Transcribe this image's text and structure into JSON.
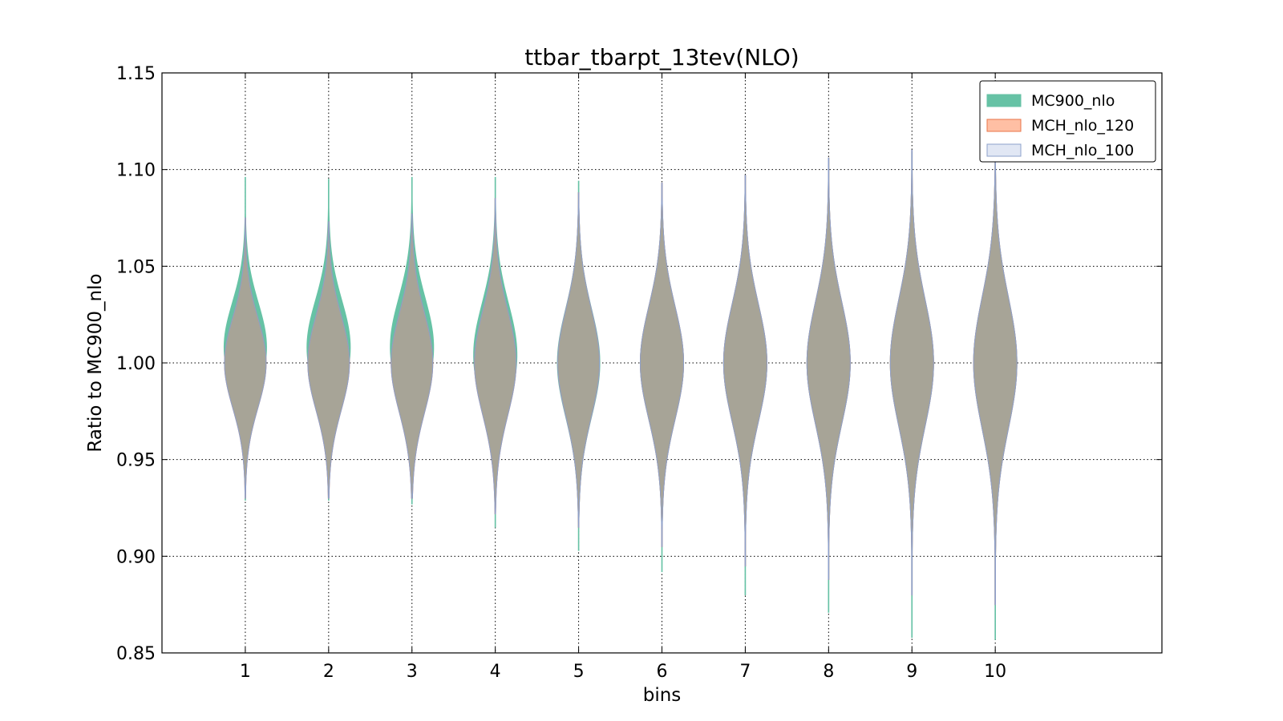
{
  "chart_data": {
    "type": "violin",
    "title": "ttbar_tbarpt_13tev(NLO)",
    "xlabel": "bins",
    "ylabel": "Ratio to MC900_nlo",
    "xlim": [
      0,
      12
    ],
    "ylim": [
      0.85,
      1.15
    ],
    "x_ticks": [
      "1",
      "2",
      "3",
      "4",
      "5",
      "6",
      "7",
      "8",
      "9",
      "10"
    ],
    "y_ticks": [
      "0.85",
      "0.90",
      "0.95",
      "1.00",
      "1.05",
      "1.10",
      "1.15"
    ],
    "grid": true,
    "legend_position": "top-right",
    "series": [
      {
        "name": "MC900_nlo",
        "color": "#66c2a5",
        "edge": "#66c2a5",
        "bins": [
          {
            "bin": 1,
            "min": 0.929,
            "max": 1.096,
            "center": 1.008,
            "width": 0.51
          },
          {
            "bin": 2,
            "min": 0.929,
            "max": 1.095,
            "center": 1.008,
            "width": 0.52
          },
          {
            "bin": 3,
            "min": 0.927,
            "max": 1.096,
            "center": 1.008,
            "width": 0.52
          },
          {
            "bin": 4,
            "min": 0.915,
            "max": 1.096,
            "center": 1.004,
            "width": 0.52
          },
          {
            "bin": 5,
            "min": 0.903,
            "max": 1.094,
            "center": 1.0,
            "width": 0.51
          },
          {
            "bin": 6,
            "min": 0.892,
            "max": 1.092,
            "center": 1.0,
            "width": 0.52
          },
          {
            "bin": 7,
            "min": 0.88,
            "max": 1.097,
            "center": 1.0,
            "width": 0.52
          },
          {
            "bin": 8,
            "min": 0.871,
            "max": 1.106,
            "center": 1.0,
            "width": 0.52
          },
          {
            "bin": 9,
            "min": 0.858,
            "max": 1.109,
            "center": 1.0,
            "width": 0.52
          },
          {
            "bin": 10,
            "min": 0.857,
            "max": 1.106,
            "center": 1.0,
            "width": 0.52
          }
        ]
      },
      {
        "name": "MCH_nlo_120",
        "color": "#fc8d62",
        "edge": "#e8764a",
        "bins": [
          {
            "bin": 1,
            "min": 0.93,
            "max": 1.075,
            "center": 1.0,
            "width": 0.5
          },
          {
            "bin": 2,
            "min": 0.93,
            "max": 1.073,
            "center": 1.0,
            "width": 0.5
          },
          {
            "bin": 3,
            "min": 0.93,
            "max": 1.077,
            "center": 1.0,
            "width": 0.5
          },
          {
            "bin": 4,
            "min": 0.922,
            "max": 1.085,
            "center": 1.0,
            "width": 0.5
          },
          {
            "bin": 5,
            "min": 0.915,
            "max": 1.088,
            "center": 1.0,
            "width": 0.5
          },
          {
            "bin": 6,
            "min": 0.905,
            "max": 1.093,
            "center": 1.0,
            "width": 0.52
          },
          {
            "bin": 7,
            "min": 0.895,
            "max": 1.097,
            "center": 1.0,
            "width": 0.52
          },
          {
            "bin": 8,
            "min": 0.888,
            "max": 1.106,
            "center": 1.0,
            "width": 0.52
          },
          {
            "bin": 9,
            "min": 0.88,
            "max": 1.11,
            "center": 1.0,
            "width": 0.52
          },
          {
            "bin": 10,
            "min": 0.875,
            "max": 1.11,
            "center": 1.0,
            "width": 0.52
          }
        ]
      },
      {
        "name": "MCH_nlo_100",
        "color": "#8da0cb",
        "edge": "#8da0cb",
        "bins": [
          {
            "bin": 1,
            "min": 0.93,
            "max": 1.075,
            "center": 1.0,
            "width": 0.5
          },
          {
            "bin": 2,
            "min": 0.93,
            "max": 1.073,
            "center": 1.0,
            "width": 0.5
          },
          {
            "bin": 3,
            "min": 0.93,
            "max": 1.077,
            "center": 1.0,
            "width": 0.5
          },
          {
            "bin": 4,
            "min": 0.922,
            "max": 1.085,
            "center": 1.0,
            "width": 0.5
          },
          {
            "bin": 5,
            "min": 0.915,
            "max": 1.088,
            "center": 1.0,
            "width": 0.5
          },
          {
            "bin": 6,
            "min": 0.905,
            "max": 1.093,
            "center": 1.0,
            "width": 0.52
          },
          {
            "bin": 7,
            "min": 0.895,
            "max": 1.097,
            "center": 1.0,
            "width": 0.52
          },
          {
            "bin": 8,
            "min": 0.888,
            "max": 1.106,
            "center": 1.0,
            "width": 0.52
          },
          {
            "bin": 9,
            "min": 0.88,
            "max": 1.11,
            "center": 1.0,
            "width": 0.52
          },
          {
            "bin": 10,
            "min": 0.875,
            "max": 1.11,
            "center": 1.0,
            "width": 0.52
          }
        ]
      }
    ],
    "overlap_color": "#a7a497"
  }
}
